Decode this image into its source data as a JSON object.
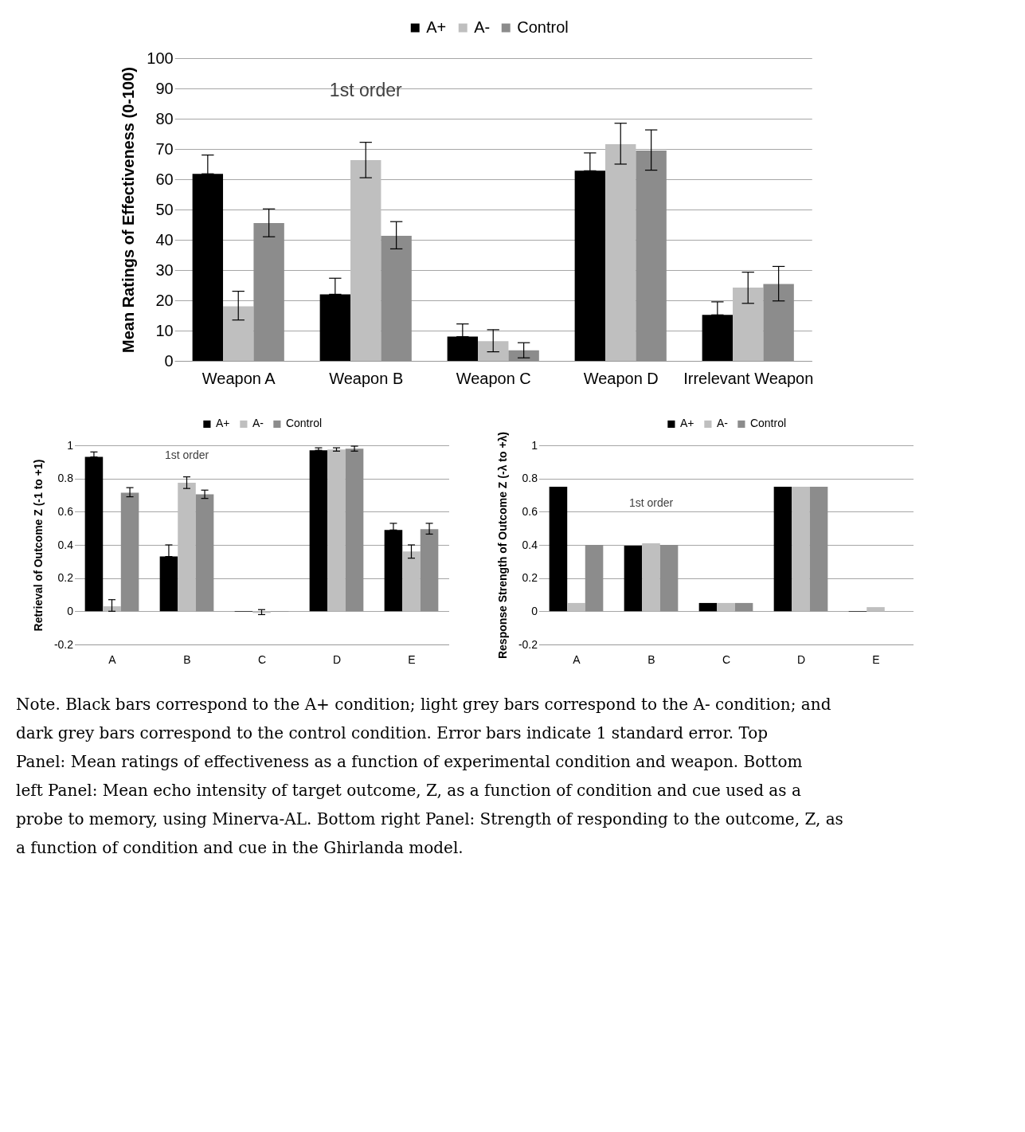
{
  "chart_data": [
    {
      "type": "bar",
      "ylabel": "Mean Ratings of Effectiveness (0-100)",
      "categories": [
        "Weapon A",
        "Weapon B",
        "Weapon C",
        "Weapon D",
        "Irrelevant Weapon"
      ],
      "series": [
        {
          "name": "A+",
          "color": "#000000",
          "values": [
            61.8,
            22,
            8,
            62.8,
            15.2
          ],
          "errors": [
            [
              61.8,
              68
            ],
            [
              22,
              27.3
            ],
            [
              8,
              12.2
            ],
            [
              62.8,
              68.7
            ],
            [
              15.2,
              19.5
            ]
          ]
        },
        {
          "name": "A-",
          "color": "#bfbfbf",
          "values": [
            18,
            66.3,
            6.5,
            71.6,
            24.2
          ],
          "errors": [
            [
              13.5,
              23
            ],
            [
              60.5,
              72.2
            ],
            [
              3,
              10.3
            ],
            [
              65,
              78.5
            ],
            [
              19,
              29.3
            ]
          ]
        },
        {
          "name": "Control",
          "color": "#8c8c8c",
          "values": [
            45.5,
            41.3,
            3.5,
            69.5,
            25.4
          ],
          "errors": [
            [
              41,
              50.2
            ],
            [
              37,
              46
            ],
            [
              1,
              6
            ],
            [
              63,
              76.3
            ],
            [
              19.8,
              31.2
            ]
          ]
        }
      ],
      "ylim": [
        0,
        100
      ],
      "yticks": [
        0,
        10,
        20,
        30,
        40,
        50,
        60,
        70,
        80,
        90,
        100
      ],
      "grid": "y",
      "legend": "top",
      "annotations": [
        "1st order"
      ]
    },
    {
      "type": "bar",
      "ylabel": "Retrieval of Outcome Z (-1 to +1)",
      "categories": [
        "A",
        "B",
        "C",
        "D",
        "E"
      ],
      "series": [
        {
          "name": "A+",
          "color": "#000000",
          "values": [
            0.93,
            0.33,
            -0.003,
            0.97,
            0.49
          ],
          "errors": [
            [
              0.93,
              0.96
            ],
            [
              0.33,
              0.4
            ],
            null,
            [
              0.97,
              0.985
            ],
            [
              0.49,
              0.53
            ]
          ]
        },
        {
          "name": "A-",
          "color": "#bfbfbf",
          "values": [
            0.03,
            0.775,
            -0.01,
            0.975,
            0.36
          ],
          "errors": [
            [
              0,
              0.07
            ],
            [
              0.74,
              0.81
            ],
            [
              -0.02,
              0.01
            ],
            [
              0.965,
              0.985
            ],
            [
              0.32,
              0.4
            ]
          ]
        },
        {
          "name": "Control",
          "color": "#8c8c8c",
          "values": [
            0.715,
            0.705,
            -0.003,
            0.98,
            0.495
          ],
          "errors": [
            [
              0.69,
              0.745
            ],
            [
              0.68,
              0.73
            ],
            null,
            [
              0.965,
              0.995
            ],
            [
              0.465,
              0.53
            ]
          ]
        }
      ],
      "ylim": [
        -0.2,
        1
      ],
      "yticks": [
        -0.2,
        0,
        0.2,
        0.4,
        0.6,
        0.8,
        1
      ],
      "grid": "y",
      "legend": "top",
      "annotations": [
        "1st order"
      ]
    },
    {
      "type": "bar",
      "ylabel": "Response Strength of Outcome Z (-λ to +λ)",
      "categories": [
        "A",
        "B",
        "C",
        "D",
        "E"
      ],
      "series": [
        {
          "name": "A+",
          "color": "#000000",
          "values": [
            0.75,
            0.395,
            0.05,
            0.75,
            -0.003
          ]
        },
        {
          "name": "A-",
          "color": "#bfbfbf",
          "values": [
            0.05,
            0.41,
            0.05,
            0.75,
            0.025
          ]
        },
        {
          "name": "Control",
          "color": "#8c8c8c",
          "values": [
            0.4,
            0.4,
            0.05,
            0.75,
            0
          ]
        }
      ],
      "ylim": [
        -0.2,
        1
      ],
      "yticks": [
        -0.2,
        0,
        0.2,
        0.4,
        0.6,
        0.8,
        1
      ],
      "grid": "y",
      "legend": "top",
      "annotations": [
        "1st order",
        "Note. Black bars correspond to the A+ condition; light grey bars correspond to the A- condition; and dark grey bars correspond to the control condition.  Error bars indicate 1 standard error. Top Panel: Mean ratings of effectiveness as a function of experimental condition and weapon.  Bottom left Panel: Mean echo intensity of target outcome, Z, as a function of condition and cue used as a probe to memory, using Minerva-AL.  Bottom right Panel: Strength of responding to the outcome, Z, as a function of condition and cue in the Ghirlanda model."
      ]
    }
  ]
}
